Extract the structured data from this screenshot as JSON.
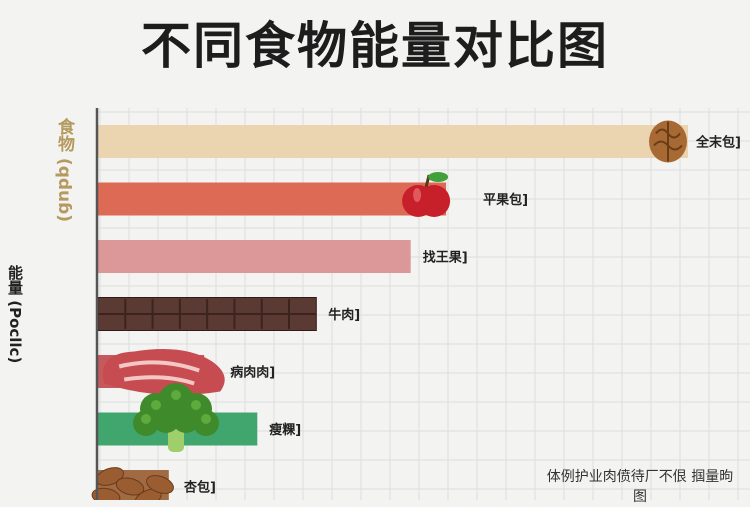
{
  "chart_data": {
    "type": "bar",
    "orientation": "horizontal",
    "title": "不同食物能量对比图",
    "ylabel_primary": "能量 (Pocllc)",
    "ylabel_secondary": "食物 (qduɓ)",
    "categories": [
      "全末包]",
      "平果包]",
      "找王果]",
      "牛肉]",
      "病肉肉]",
      "瘦粿]",
      "杏包]"
    ],
    "values": [
      100,
      59,
      53,
      37,
      18,
      27,
      12
    ],
    "colors": [
      "#ead5b0",
      "#dc6a55",
      "#dc9898",
      "#5a3a32",
      "#c45a5e",
      "#41a56e",
      "#a06a43"
    ],
    "icons": [
      "walnut-icon",
      "apple-icon",
      "",
      "chocolate-bar-icon",
      "raw-meat-icon",
      "broccoli-icon",
      "almonds-icon"
    ],
    "xlim": [
      0,
      100
    ],
    "grid": true,
    "footnote": "体例护业肉偾待厂不佷 掴量昫图"
  }
}
